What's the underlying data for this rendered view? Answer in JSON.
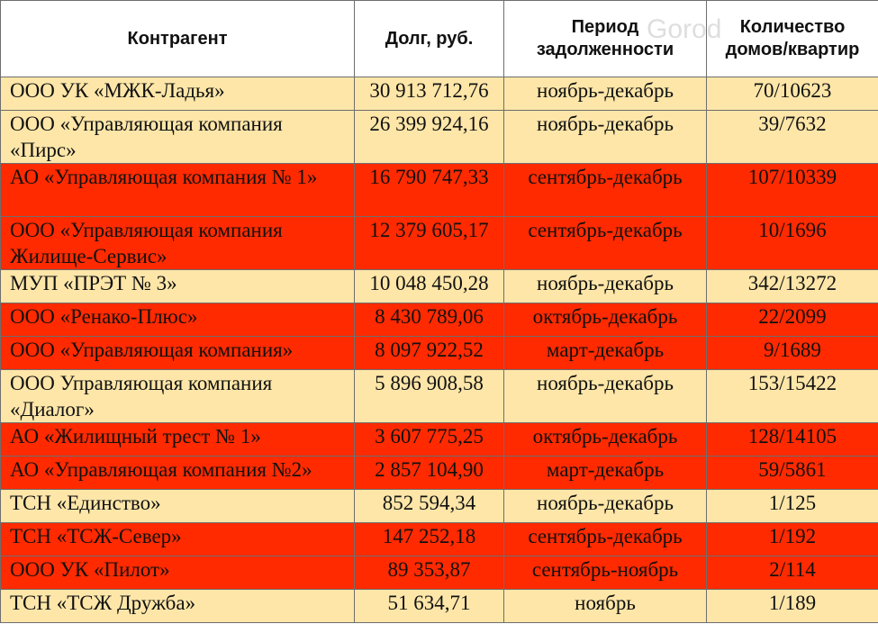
{
  "header": {
    "col1": "Контрагент",
    "col2": "Долг, руб.",
    "col3": "Период задолженности",
    "col4": "Количество домов/квартир"
  },
  "watermark": "Gorod",
  "colors": {
    "light": "#fde6a8",
    "red": "#ff2a00"
  },
  "rows": [
    {
      "name": "ООО УК «МЖК-Ладья»",
      "debt": "30 913 712,76",
      "period": "ноябрь-декабрь",
      "count": "70/10623",
      "color": "light"
    },
    {
      "name": "ООО «Управляющая компания «Пирс»",
      "debt": "26 399 924,16",
      "period": "ноябрь-декабрь",
      "count": "39/7632",
      "color": "light"
    },
    {
      "name": "АО «Управляющая компания № 1»",
      "debt": "16 790 747,33",
      "period": "сентябрь-декабрь",
      "count": "107/10339",
      "color": "red"
    },
    {
      "name": "ООО «Управляющая компания Жилище-Сервис»",
      "debt": "12 379 605,17",
      "period": "сентябрь-декабрь",
      "count": "10/1696",
      "color": "red"
    },
    {
      "name": "МУП «ПРЭТ № 3»",
      "debt": "10 048 450,28",
      "period": "ноябрь-декабрь",
      "count": "342/13272",
      "color": "light"
    },
    {
      "name": "ООО «Ренако-Плюс»",
      "debt": "8 430 789,06",
      "period": "октябрь-декабрь",
      "count": "22/2099",
      "color": "red"
    },
    {
      "name": "ООО «Управляющая компания»",
      "debt": "8 097 922,52",
      "period": "март-декабрь",
      "count": "9/1689",
      "color": "red"
    },
    {
      "name": "ООО Управляющая компания «Диалог»",
      "debt": "5 896 908,58",
      "period": "ноябрь-декабрь",
      "count": "153/15422",
      "color": "light"
    },
    {
      "name": "АО «Жилищный трест № 1»",
      "debt": "3 607 775,25",
      "period": "октябрь-декабрь",
      "count": "128/14105",
      "color": "red"
    },
    {
      "name": "АО «Управляющая компания №2»",
      "debt": "2 857 104,90",
      "period": "март-декабрь",
      "count": "59/5861",
      "color": "red"
    },
    {
      "name": "ТСН «Единство»",
      "debt": "852 594,34",
      "period": "ноябрь-декабрь",
      "count": "1/125",
      "color": "light"
    },
    {
      "name": "ТСН «ТСЖ-Север»",
      "debt": "147 252,18",
      "period": "сентябрь-декабрь",
      "count": "1/192",
      "color": "red"
    },
    {
      "name": "ООО УК «Пилот»",
      "debt": "89 353,87",
      "period": "сентябрь-ноябрь",
      "count": "2/114",
      "color": "red"
    },
    {
      "name": "ТСН «ТСЖ Дружба»",
      "debt": "51 634,71",
      "period": "ноябрь",
      "count": "1/189",
      "color": "light"
    }
  ]
}
